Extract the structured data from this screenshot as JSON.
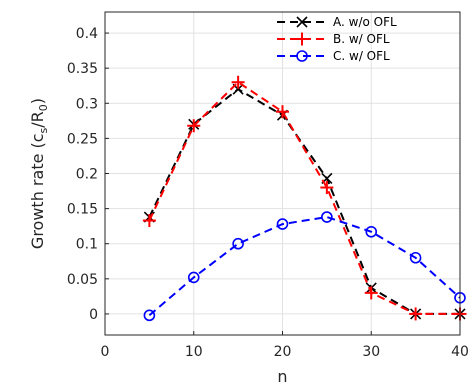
{
  "chart_data": {
    "type": "line",
    "xlabel": "n",
    "ylabel": "Growth rate (c",
    "ylabel_sub_s": "s",
    "ylabel_mid": "/R",
    "ylabel_sub_0": "0",
    "ylabel_end": ")",
    "xlim": [
      0,
      40
    ],
    "ylim": [
      -0.03,
      0.43
    ],
    "xticks": [
      0,
      10,
      20,
      30,
      40
    ],
    "xtick_labels": [
      "0",
      "10",
      "20",
      "30",
      "40"
    ],
    "yticks": [
      0,
      0.05,
      0.1,
      0.15,
      0.2,
      0.25,
      0.3,
      0.35,
      0.4
    ],
    "ytick_labels": [
      "0",
      "0.05",
      "0.1",
      "0.15",
      "0.2",
      "0.25",
      "0.3",
      "0.35",
      "0.4"
    ],
    "grid": true,
    "legend_position": "top-right",
    "series": [
      {
        "name": "A. w/o OFL",
        "color": "#000000",
        "marker": "x",
        "x": [
          5,
          10,
          15,
          20,
          25,
          30,
          35,
          40
        ],
        "y": [
          0.138,
          0.27,
          0.32,
          0.283,
          0.193,
          0.037,
          0.0,
          0.0
        ]
      },
      {
        "name": "B. w/ OFL",
        "color": "#ff0000",
        "marker": "+",
        "x": [
          5,
          10,
          15,
          20,
          25,
          30,
          35,
          40
        ],
        "y": [
          0.133,
          0.268,
          0.33,
          0.288,
          0.18,
          0.03,
          0.0,
          0.0
        ]
      },
      {
        "name": "C. w/ OFL",
        "color": "#0000ff",
        "marker": "o",
        "x": [
          5,
          10,
          15,
          20,
          25,
          30,
          35,
          40
        ],
        "y": [
          -0.002,
          0.052,
          0.1,
          0.128,
          0.138,
          0.117,
          0.08,
          0.023
        ]
      }
    ]
  }
}
